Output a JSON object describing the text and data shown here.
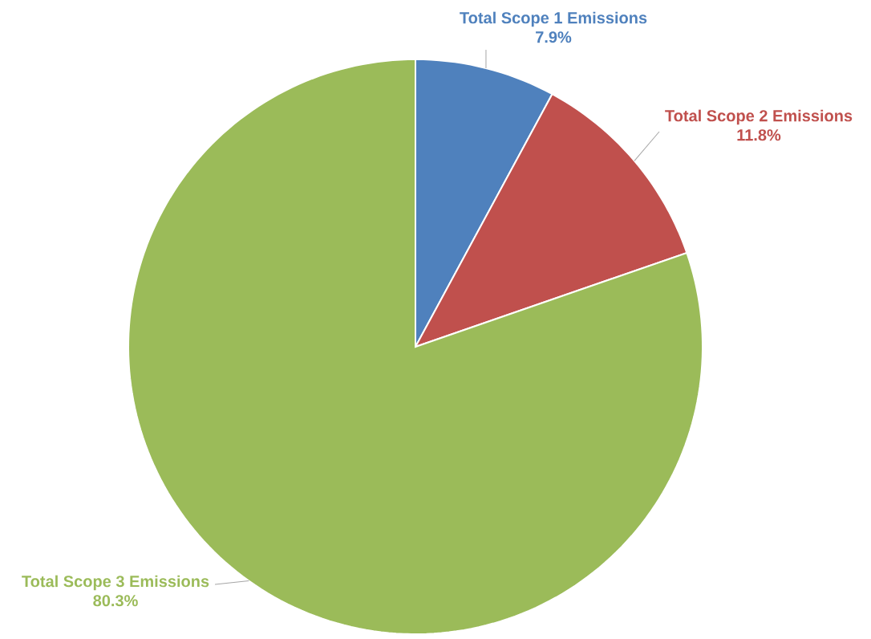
{
  "chart_data": {
    "type": "pie",
    "categories": [
      "Total Scope 1 Emissions",
      "Total Scope 2 Emissions",
      "Total Scope 3 Emissions"
    ],
    "values": [
      7.9,
      11.8,
      80.3
    ],
    "value_labels": [
      "7.9%",
      "11.8%",
      "80.3%"
    ],
    "colors": [
      "#4f81bd",
      "#c0504d",
      "#9bbb59"
    ]
  }
}
